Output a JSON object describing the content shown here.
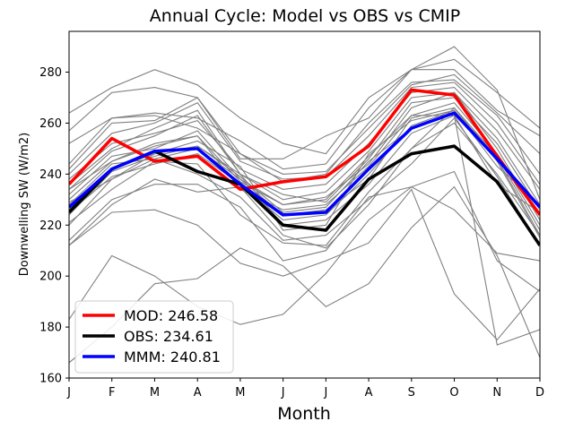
{
  "chart_data": {
    "type": "line",
    "title": "Annual Cycle: Model vs OBS vs CMIP",
    "xlabel": "Month",
    "ylabel": "Downwelling SW (W/m2)",
    "categories": [
      "J",
      "F",
      "M",
      "A",
      "M",
      "J",
      "J",
      "A",
      "S",
      "O",
      "N",
      "D"
    ],
    "ylim": [
      160,
      296
    ],
    "yticks": [
      160,
      180,
      200,
      220,
      240,
      260,
      280
    ],
    "legend_position": "lower-left",
    "series": [
      {
        "name": "MOD",
        "legend": "MOD: 246.58",
        "color": "#ff0000",
        "values": [
          236,
          254,
          245,
          247,
          234,
          237,
          239,
          251,
          273,
          271,
          247,
          224
        ]
      },
      {
        "name": "OBS",
        "legend": "OBS: 234.61",
        "color": "#000000",
        "values": [
          225,
          242,
          249,
          241,
          236,
          220,
          218,
          238,
          248,
          251,
          237,
          212
        ]
      },
      {
        "name": "MMM",
        "legend": "MMM: 240.81",
        "color": "#0000ff",
        "values": [
          227,
          242,
          249,
          250,
          236,
          224,
          225,
          242,
          258,
          264,
          246,
          227
        ]
      }
    ],
    "cmip_color": "#808080",
    "cmip_models": [
      [
        264,
        274,
        281,
        275,
        262,
        252,
        248,
        270,
        281,
        290,
        273,
        230
      ],
      [
        257,
        272,
        274,
        270,
        246,
        246,
        255,
        262,
        281,
        285,
        272,
        258
      ],
      [
        252,
        262,
        264,
        262,
        253,
        242,
        244,
        266,
        281,
        281,
        265,
        255
      ],
      [
        244,
        262,
        263,
        258,
        248,
        240,
        241,
        258,
        275,
        279,
        264,
        248
      ],
      [
        242,
        260,
        261,
        270,
        248,
        237,
        240,
        260,
        276,
        277,
        263,
        240
      ],
      [
        240,
        256,
        260,
        268,
        245,
        238,
        239,
        255,
        274,
        276,
        260,
        236
      ],
      [
        238,
        252,
        256,
        261,
        242,
        234,
        236,
        252,
        272,
        274,
        257,
        234
      ],
      [
        236,
        250,
        258,
        265,
        240,
        230,
        233,
        249,
        270,
        272,
        254,
        228
      ],
      [
        234,
        249,
        255,
        263,
        240,
        232,
        229,
        246,
        268,
        270,
        252,
        226
      ],
      [
        232,
        247,
        250,
        257,
        238,
        228,
        231,
        244,
        266,
        272,
        250,
        222
      ],
      [
        230,
        245,
        252,
        255,
        234,
        226,
        228,
        243,
        263,
        268,
        248,
        220
      ],
      [
        228,
        244,
        246,
        250,
        238,
        224,
        226,
        238,
        262,
        266,
        247,
        218
      ],
      [
        225,
        239,
        244,
        248,
        236,
        222,
        224,
        240,
        259,
        265,
        246,
        216
      ],
      [
        229,
        238,
        248,
        251,
        239,
        225,
        227,
        245,
        258,
        264,
        248,
        224
      ],
      [
        221,
        234,
        245,
        244,
        224,
        213,
        212,
        233,
        250,
        260,
        240,
        216
      ],
      [
        212,
        228,
        238,
        233,
        235,
        216,
        211,
        228,
        250,
        266,
        245,
        215
      ],
      [
        220,
        238,
        246,
        240,
        231,
        214,
        216,
        230,
        244,
        262,
        239,
        212
      ],
      [
        212,
        225,
        226,
        220,
        205,
        200,
        206,
        213,
        234,
        193,
        175,
        195
      ],
      [
        183,
        208,
        200,
        188,
        181,
        185,
        201,
        222,
        235,
        226,
        209,
        206
      ],
      [
        166,
        180,
        197,
        199,
        211,
        204,
        188,
        197,
        219,
        235,
        208,
        168
      ],
      [
        214,
        230,
        236,
        236,
        227,
        206,
        210,
        231,
        235,
        241,
        206,
        194
      ],
      [
        234,
        245,
        251,
        255,
        237,
        228,
        230,
        247,
        263,
        263,
        236,
        225
      ],
      [
        226,
        242,
        248,
        253,
        243,
        218,
        220,
        248,
        261,
        265,
        243,
        228
      ],
      [
        224,
        241,
        247,
        251,
        240,
        220,
        222,
        236,
        256,
        263,
        173,
        179
      ]
    ]
  }
}
